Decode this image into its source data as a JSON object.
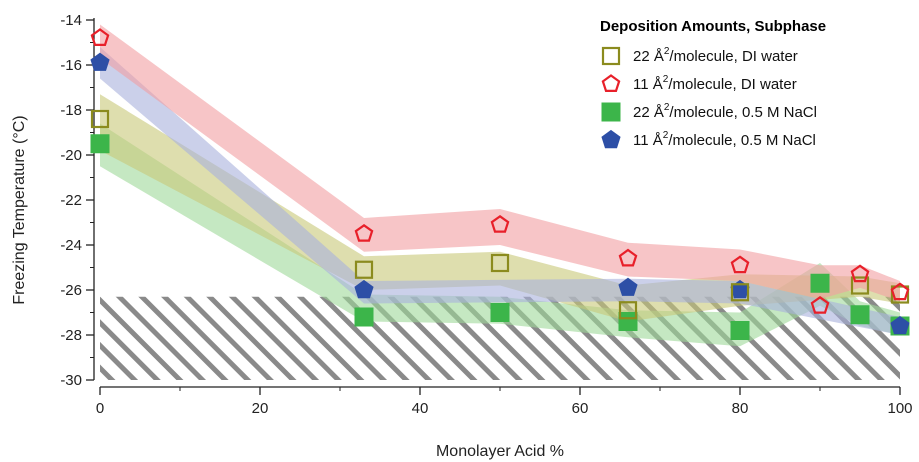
{
  "chart_data": {
    "type": "scatter",
    "xlabel": "Monolayer Acid %",
    "ylabel": "Freezing Temperature (°C)",
    "xlim": [
      0,
      100
    ],
    "ylim": [
      -30,
      -14
    ],
    "xticks": [
      0,
      20,
      40,
      60,
      80,
      100
    ],
    "yticks": [
      -30,
      -28,
      -26,
      -24,
      -22,
      -20,
      -18,
      -16,
      -14
    ],
    "grid": false,
    "legend": {
      "title": "Deposition Amounts, Subphase",
      "placement": "top-right"
    },
    "background_region": {
      "description": "hatched",
      "y_range": [
        -30,
        -26.3
      ]
    },
    "series": [
      {
        "name_pre": "22 Å",
        "name_sup": "2",
        "name_post": "/molecule, DI water",
        "marker": "square-open",
        "color": "#8b8b1e",
        "band_color": "#c8c878",
        "points": [
          {
            "x": 0,
            "y": -18.4
          },
          {
            "x": 33,
            "y": -25.1
          },
          {
            "x": 50,
            "y": -24.8
          },
          {
            "x": 66,
            "y": -26.9
          },
          {
            "x": 80,
            "y": -26.1
          },
          {
            "x": 95,
            "y": -25.8
          },
          {
            "x": 100,
            "y": -26.2
          }
        ],
        "band": [
          {
            "x": 0,
            "lo": -19.8,
            "hi": -17.3
          },
          {
            "x": 33,
            "lo": -26.0,
            "hi": -24.5
          },
          {
            "x": 50,
            "lo": -25.8,
            "hi": -24.3
          },
          {
            "x": 66,
            "lo": -27.4,
            "hi": -25.8
          },
          {
            "x": 80,
            "lo": -26.7,
            "hi": -25.3
          },
          {
            "x": 95,
            "lo": -26.3,
            "hi": -25.4
          },
          {
            "x": 100,
            "lo": -26.6,
            "hi": -25.7
          }
        ]
      },
      {
        "name_pre": "11 Å",
        "name_sup": "2",
        "name_post": "/molecule, DI water",
        "marker": "pentagon-open",
        "color": "#e8202a",
        "band_color": "#f29ea2",
        "points": [
          {
            "x": 0,
            "y": -14.8
          },
          {
            "x": 33,
            "y": -23.5
          },
          {
            "x": 50,
            "y": -23.1
          },
          {
            "x": 66,
            "y": -24.6
          },
          {
            "x": 80,
            "y": -24.9
          },
          {
            "x": 90,
            "y": -26.7
          },
          {
            "x": 95,
            "y": -25.3
          },
          {
            "x": 100,
            "y": -26.1
          }
        ],
        "band": [
          {
            "x": 0,
            "lo": -15.7,
            "hi": -14.2
          },
          {
            "x": 33,
            "lo": -24.3,
            "hi": -22.8
          },
          {
            "x": 50,
            "lo": -24.0,
            "hi": -22.4
          },
          {
            "x": 66,
            "lo": -25.4,
            "hi": -23.9
          },
          {
            "x": 80,
            "lo": -25.6,
            "hi": -24.2
          },
          {
            "x": 90,
            "lo": -26.4,
            "hi": -24.9
          },
          {
            "x": 95,
            "lo": -25.9,
            "hi": -24.9
          },
          {
            "x": 100,
            "lo": -26.5,
            "hi": -25.6
          }
        ]
      },
      {
        "name_pre": "22 Å",
        "name_sup": "2",
        "name_post": "/molecule, 0.5 M NaCl",
        "marker": "square-filled",
        "color": "#3cb54a",
        "band_color": "#9fd99a",
        "points": [
          {
            "x": 0,
            "y": -19.5
          },
          {
            "x": 33,
            "y": -27.2
          },
          {
            "x": 50,
            "y": -27.0
          },
          {
            "x": 66,
            "y": -27.4
          },
          {
            "x": 80,
            "y": -27.8
          },
          {
            "x": 90,
            "y": -25.7
          },
          {
            "x": 95,
            "y": -27.1
          },
          {
            "x": 100,
            "y": -27.6
          }
        ],
        "band": [
          {
            "x": 0,
            "lo": -20.5,
            "hi": -18.6
          },
          {
            "x": 33,
            "lo": -27.4,
            "hi": -26.2
          },
          {
            "x": 50,
            "lo": -27.5,
            "hi": -26.3
          },
          {
            "x": 66,
            "lo": -28.1,
            "hi": -26.9
          },
          {
            "x": 80,
            "lo": -28.5,
            "hi": -27.0
          },
          {
            "x": 90,
            "lo": -26.7,
            "hi": -24.8
          },
          {
            "x": 95,
            "lo": -27.6,
            "hi": -26.5
          },
          {
            "x": 100,
            "lo": -28.0,
            "hi": -27.0
          }
        ]
      },
      {
        "name_pre": "11 Å",
        "name_sup": "2",
        "name_post": "/molecule, 0.5 M NaCl",
        "marker": "pentagon-filled",
        "color": "#2d4fa6",
        "band_color": "#a9b0dc",
        "points": [
          {
            "x": 0,
            "y": -15.9
          },
          {
            "x": 33,
            "y": -26.0
          },
          {
            "x": 66,
            "y": -25.9
          },
          {
            "x": 80,
            "y": -26.0
          },
          {
            "x": 100,
            "y": -27.6
          }
        ],
        "band": [
          {
            "x": 0,
            "lo": -16.6,
            "hi": -15.2
          },
          {
            "x": 33,
            "lo": -26.6,
            "hi": -25.6
          },
          {
            "x": 66,
            "lo": -26.5,
            "hi": -25.5
          },
          {
            "x": 80,
            "lo": -26.6,
            "hi": -25.6
          },
          {
            "x": 100,
            "lo": -28.0,
            "hi": -27.2
          }
        ]
      }
    ]
  }
}
